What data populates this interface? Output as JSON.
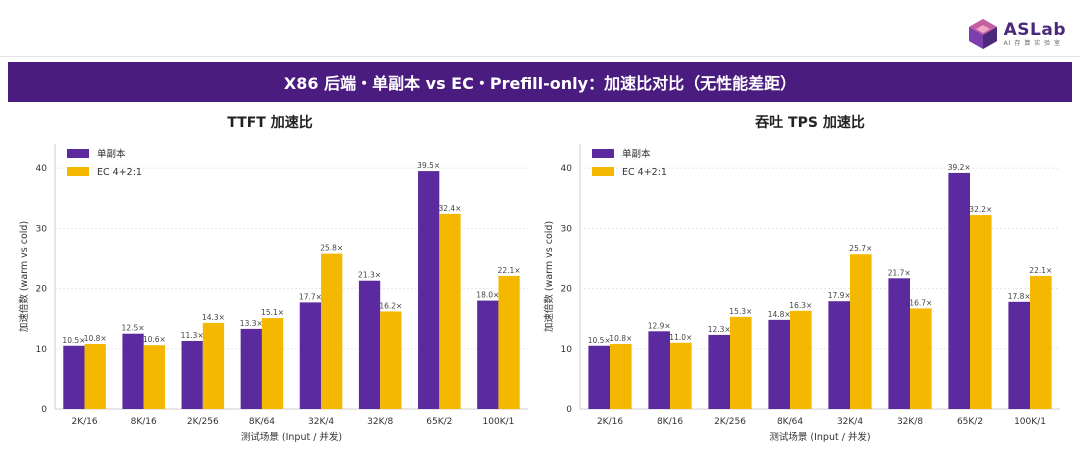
{
  "logo": {
    "name": "ASLab",
    "sub": "AI 存 算 实 验 室"
  },
  "banner": {
    "title": "X86 后端・单副本 vs EC・Prefill-only：加速比对比（无性能差距）"
  },
  "colors": {
    "series1": "#5b2a9e",
    "series2": "#f5b800",
    "banner": "#4b1c80"
  },
  "chart_data": [
    {
      "type": "bar",
      "title": "TTFT 加速比",
      "xlabel": "测试场景 (Input / 并发)",
      "ylabel": "加速倍数 (warm vs cold)",
      "ylim": [
        0,
        44
      ],
      "yticks": [
        0,
        10,
        20,
        30,
        40
      ],
      "categories": [
        "2K/16",
        "8K/16",
        "2K/256",
        "8K/64",
        "32K/4",
        "32K/8",
        "65K/2",
        "100K/1"
      ],
      "series": [
        {
          "name": "单副本",
          "values": [
            10.5,
            12.5,
            11.3,
            13.3,
            17.7,
            21.3,
            39.5,
            18.0
          ],
          "labels": [
            "10.5×",
            "12.5×",
            "11.3×",
            "13.3×",
            "17.7×",
            "21.3×",
            "39.5×",
            "18.0×"
          ]
        },
        {
          "name": "EC 4+2:1",
          "values": [
            10.8,
            10.6,
            14.3,
            15.1,
            25.8,
            16.2,
            32.4,
            22.1
          ],
          "labels": [
            "10.8×",
            "10.6×",
            "14.3×",
            "15.1×",
            "25.8×",
            "16.2×",
            "32.4×",
            "22.1×"
          ]
        }
      ],
      "legend": "top-left",
      "grid": true
    },
    {
      "type": "bar",
      "title": "吞吐 TPS 加速比",
      "xlabel": "测试场景 (Input / 并发)",
      "ylabel": "加速倍数 (warm vs cold)",
      "ylim": [
        0,
        44
      ],
      "yticks": [
        0,
        10,
        20,
        30,
        40
      ],
      "categories": [
        "2K/16",
        "8K/16",
        "2K/256",
        "8K/64",
        "32K/4",
        "32K/8",
        "65K/2",
        "100K/1"
      ],
      "series": [
        {
          "name": "单副本",
          "values": [
            10.5,
            12.9,
            12.3,
            14.8,
            17.9,
            21.7,
            39.2,
            17.8
          ],
          "labels": [
            "10.5×",
            "12.9×",
            "12.3×",
            "14.8×",
            "17.9×",
            "21.7×",
            "39.2×",
            "17.8×"
          ]
        },
        {
          "name": "EC 4+2:1",
          "values": [
            10.8,
            11.0,
            15.3,
            16.3,
            25.7,
            16.7,
            32.2,
            22.1
          ],
          "labels": [
            "10.8×",
            "11.0×",
            "15.3×",
            "16.3×",
            "25.7×",
            "16.7×",
            "32.2×",
            "22.1×"
          ]
        }
      ],
      "legend": "top-left",
      "grid": true
    }
  ]
}
